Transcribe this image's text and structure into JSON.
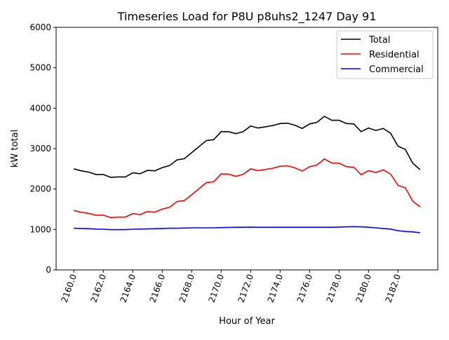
{
  "chart_data": {
    "type": "line",
    "title": "Timeseries Load for P8U p8uhs2_1247  Day 91",
    "xlabel": "Hour of Year",
    "ylabel": "kW total",
    "xlim": [
      2158.8,
      2184.7
    ],
    "ylim": [
      0,
      6000
    ],
    "xticks": [
      2160,
      2162,
      2164,
      2166,
      2168,
      2170,
      2172,
      2174,
      2176,
      2178,
      2180,
      2182
    ],
    "xtick_labels": [
      "2160.0",
      "2162.0",
      "2164.0",
      "2166.0",
      "2168.0",
      "2170.0",
      "2172.0",
      "2174.0",
      "2176.0",
      "2178.0",
      "2180.0",
      "2182.0"
    ],
    "yticks": [
      0,
      1000,
      2000,
      3000,
      4000,
      5000,
      6000
    ],
    "ytick_labels": [
      "0",
      "1000",
      "2000",
      "3000",
      "4000",
      "5000",
      "6000"
    ],
    "legend_position": "top-right",
    "x_start": 2160,
    "x_step": 0.5,
    "series": [
      {
        "name": "Total",
        "color": "#000000",
        "values": [
          2500,
          2450,
          2420,
          2360,
          2360,
          2290,
          2300,
          2300,
          2400,
          2380,
          2460,
          2450,
          2530,
          2580,
          2720,
          2750,
          2900,
          3050,
          3200,
          3220,
          3420,
          3420,
          3370,
          3420,
          3560,
          3510,
          3540,
          3570,
          3620,
          3630,
          3580,
          3500,
          3610,
          3650,
          3800,
          3700,
          3700,
          3620,
          3610,
          3420,
          3510,
          3450,
          3500,
          3380,
          3060,
          2980,
          2640,
          2480
        ]
      },
      {
        "name": "Residential",
        "color": "#ff0000",
        "values": [
          1470,
          1425,
          1400,
          1350,
          1355,
          1295,
          1305,
          1305,
          1395,
          1370,
          1445,
          1430,
          1505,
          1550,
          1690,
          1715,
          1860,
          2010,
          2160,
          2180,
          2375,
          2370,
          2315,
          2365,
          2500,
          2455,
          2485,
          2515,
          2565,
          2575,
          2525,
          2445,
          2555,
          2595,
          2745,
          2645,
          2640,
          2555,
          2540,
          2355,
          2455,
          2410,
          2475,
          2370,
          2090,
          2030,
          1700,
          1560
        ]
      },
      {
        "name": "Commercial",
        "color": "#0000ff",
        "values": [
          1030,
          1025,
          1020,
          1010,
          1005,
          995,
          995,
          995,
          1005,
          1010,
          1015,
          1020,
          1025,
          1030,
          1030,
          1035,
          1040,
          1040,
          1040,
          1040,
          1045,
          1050,
          1055,
          1055,
          1060,
          1055,
          1055,
          1055,
          1055,
          1055,
          1055,
          1055,
          1055,
          1055,
          1055,
          1055,
          1060,
          1065,
          1070,
          1065,
          1055,
          1040,
          1025,
          1010,
          970,
          950,
          940,
          920
        ]
      }
    ]
  }
}
